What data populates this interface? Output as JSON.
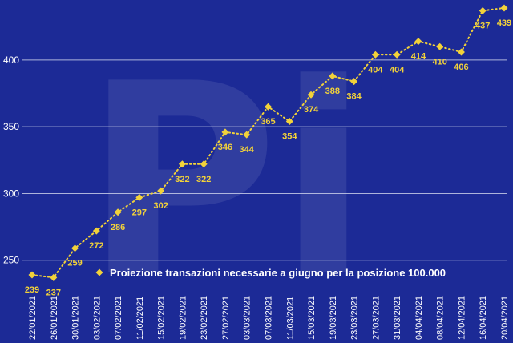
{
  "watermark": "Pi",
  "colors": {
    "background": "#1c2a96",
    "series": "#f2d23a",
    "grid": "#c8cce8",
    "text": "#ffffff"
  },
  "chart_data": {
    "type": "line",
    "title": "",
    "xlabel": "",
    "ylabel": "",
    "ylim": [
      230,
      445
    ],
    "yticks": [
      250,
      300,
      350,
      400
    ],
    "grid": "horizontal",
    "legend_position": "bottom-center",
    "x": [
      "22/01/2021",
      "26/01/2021",
      "30/01/2021",
      "03/02/2021",
      "07/02/2021",
      "11/02/2021",
      "15/02/2021",
      "19/02/2021",
      "23/02/2021",
      "27/02/2021",
      "03/03/2021",
      "07/03/2021",
      "11/03/2021",
      "15/03/2021",
      "19/03/2021",
      "23/03/2021",
      "27/03/2021",
      "31/03/2021",
      "04/04/2021",
      "08/04/2021",
      "12/04/2021",
      "16/04/2021",
      "20/04/2021"
    ],
    "xticks": [
      "22/01/2021",
      "26/01/2021",
      "30/01/2021",
      "03/02/2021",
      "07/02/2021",
      "11/02/2021",
      "15/02/2021",
      "19/02/2021",
      "23/02/2021",
      "27/02/2021",
      "03/03/2021",
      "07/03/2021",
      "11/03/2021",
      "15/03/2021",
      "19/03/2021",
      "23/03/2021",
      "27/03/2021",
      "31/03/2021",
      "04/04/2021",
      "08/04/2021",
      "12/04/2021",
      "16/04/2021",
      "20/04/2021"
    ],
    "series": [
      {
        "name": "Proiezione transazioni necessarie a giugno per la posizione 100.000",
        "marker": "diamond",
        "line_style": "dotted",
        "values": [
          239,
          237,
          259,
          272,
          286,
          297,
          302,
          322,
          322,
          346,
          344,
          365,
          354,
          374,
          388,
          384,
          404,
          404,
          414,
          410,
          406,
          437,
          439
        ],
        "labels": [
          "239",
          "237",
          "259",
          "272",
          "286",
          "297",
          "302",
          "322",
          "322",
          "346",
          "344",
          "365",
          "354",
          "374",
          "388",
          "384",
          "404",
          "404",
          "414",
          "410",
          "406",
          "437",
          "439"
        ]
      }
    ]
  }
}
